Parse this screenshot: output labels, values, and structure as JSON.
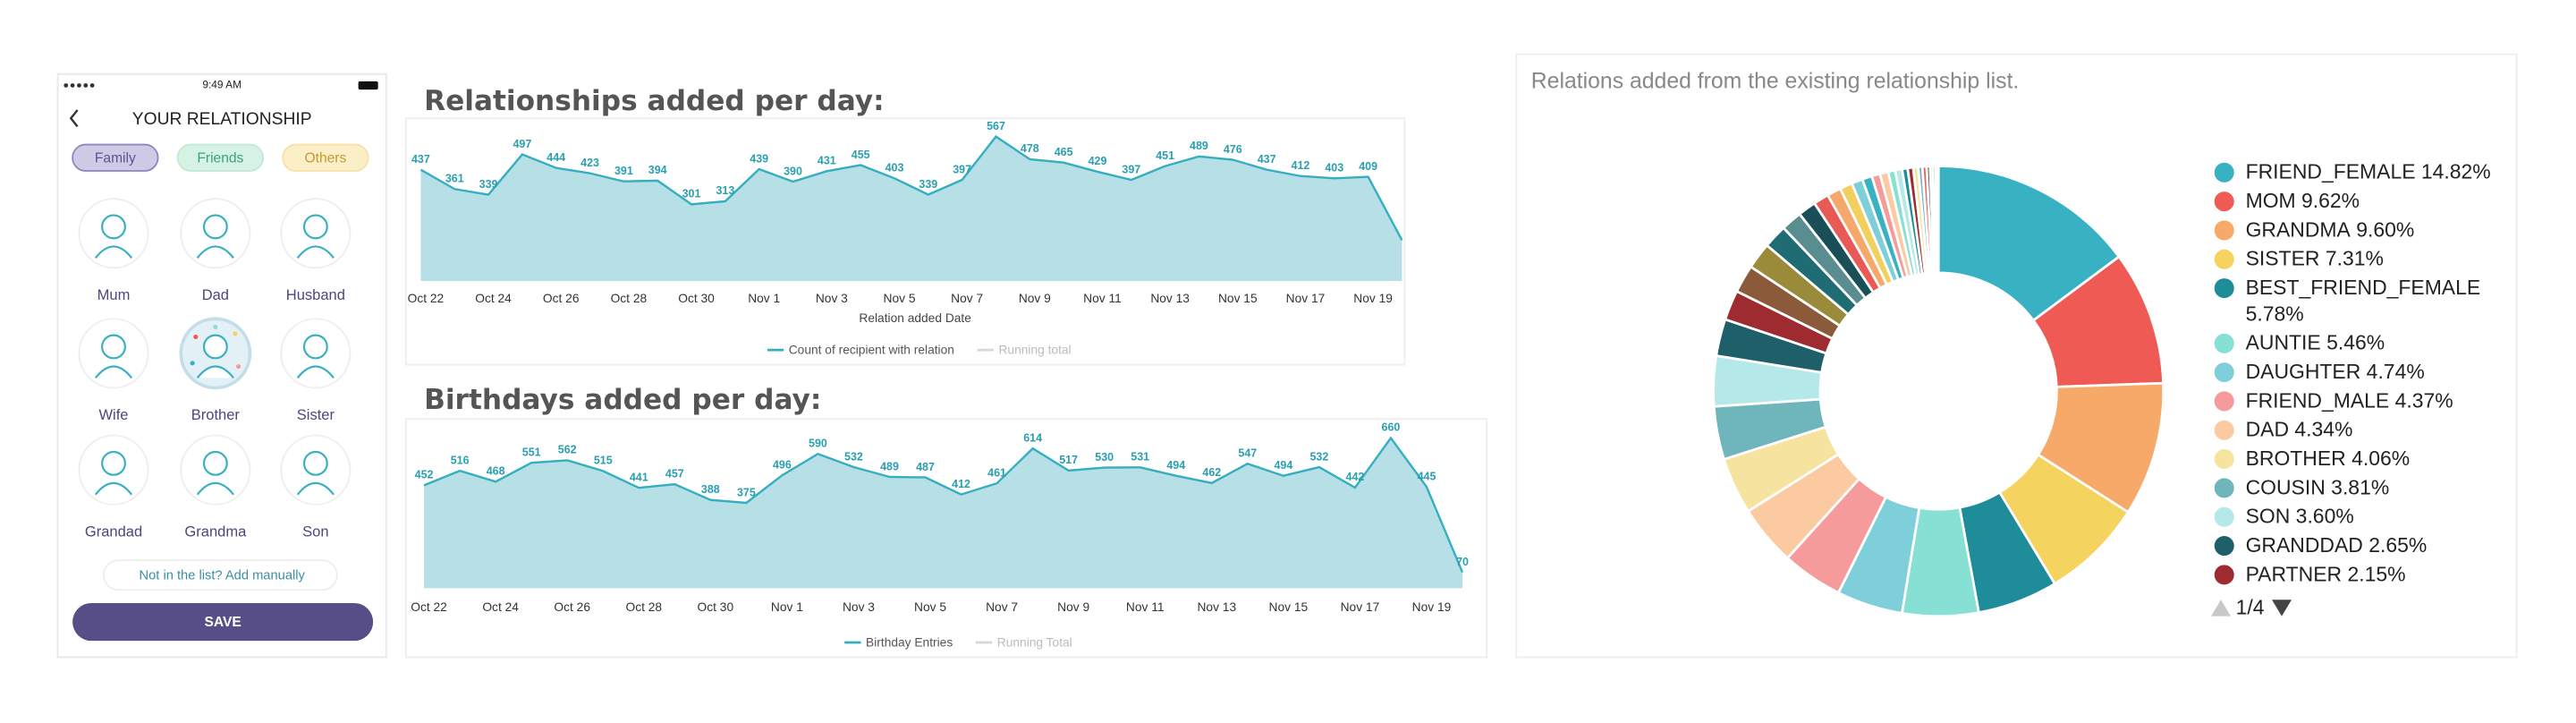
{
  "phone": {
    "status_time": "9:49 AM",
    "title": "YOUR RELATIONSHIP",
    "tabs": [
      "Family",
      "Friends",
      "Others"
    ],
    "tiles": [
      "Mum",
      "Dad",
      "Husband",
      "Wife",
      "Brother",
      "Sister",
      "Grandad",
      "Grandma",
      "Son"
    ],
    "add_manually": "Not in the list? Add manually",
    "button": "SAVE"
  },
  "chart_data": [
    {
      "type": "area",
      "title": "Relationships added per day:",
      "x_label": "Relation added Date",
      "categories": [
        "Oct 22",
        null,
        "Oct 24",
        null,
        "Oct 26",
        null,
        "Oct 28",
        null,
        "Oct 30",
        null,
        "Nov 1",
        null,
        "Nov 3",
        null,
        "Nov 5",
        null,
        "Nov 7",
        null,
        "Nov 9",
        null,
        "Nov 11",
        null,
        "Nov 13",
        null,
        "Nov 15",
        null,
        "Nov 17",
        null,
        "Nov 19",
        null
      ],
      "ylim": [
        0,
        600
      ],
      "series": [
        {
          "name": "Count of recipient with relation",
          "color": "#35aec0",
          "values": [
            437,
            361,
            339,
            497,
            444,
            423,
            391,
            394,
            301,
            313,
            439,
            390,
            431,
            455,
            403,
            339,
            397,
            567,
            478,
            465,
            429,
            397,
            451,
            489,
            476,
            437,
            412,
            403,
            409,
            160
          ],
          "value_labels": [
            "437",
            "361",
            "339",
            "497",
            "444",
            "423",
            "391",
            "394",
            "301",
            "313",
            "439",
            "390",
            "431",
            "455",
            "403",
            "339",
            "397",
            "567",
            "478",
            "465",
            "429",
            "397",
            "451",
            "489",
            "476",
            "437",
            "412",
            "403",
            "409",
            null
          ]
        },
        {
          "name": "Running total",
          "color": "#d6d6d6"
        }
      ]
    },
    {
      "type": "area",
      "title": "Birthdays added per day:",
      "categories": [
        "Oct 22",
        null,
        "Oct 24",
        null,
        "Oct 26",
        null,
        "Oct 28",
        null,
        "Oct 30",
        null,
        "Nov 1",
        null,
        "Nov 3",
        null,
        "Nov 5",
        null,
        "Nov 7",
        null,
        "Nov 9",
        null,
        "Nov 11",
        null,
        "Nov 13",
        null,
        "Nov 15",
        null,
        "Nov 17",
        null,
        "Nov 19",
        null
      ],
      "ylim": [
        0,
        700
      ],
      "series": [
        {
          "name": "Birthday Entries",
          "color": "#35aec0",
          "values": [
            452,
            516,
            468,
            551,
            562,
            515,
            441,
            457,
            388,
            375,
            496,
            590,
            532,
            489,
            487,
            412,
            461,
            614,
            517,
            530,
            531,
            494,
            462,
            547,
            494,
            532,
            442,
            660,
            445,
            70
          ],
          "value_labels": [
            "452",
            "516",
            "468",
            "551",
            "562",
            "515",
            "441",
            "457",
            "388",
            "375",
            "496",
            "590",
            "532",
            "489",
            "487",
            "412",
            "461",
            "614",
            "517",
            "530",
            "531",
            "494",
            "462",
            "547",
            "494",
            "532",
            "442",
            "660",
            "445",
            "70"
          ]
        },
        {
          "name": "Running Total",
          "color": "#d6d6d6"
        }
      ]
    },
    {
      "type": "pie",
      "title": "Relations added from the existing relationship list.",
      "legend_page": "1/4",
      "categories": [
        "FRIEND_FEMALE",
        "MOM",
        "GRANDMA",
        "SISTER",
        "BEST_FRIEND_FEMALE",
        "AUNTIE",
        "DAUGHTER",
        "FRIEND_MALE",
        "DAD",
        "BROTHER",
        "COUSIN",
        "SON",
        "GRANDDAD",
        "PARTNER",
        null,
        null,
        null,
        null,
        null,
        null,
        null,
        null,
        null,
        null,
        null,
        null,
        null,
        null,
        null,
        null,
        null,
        null,
        null,
        null,
        null,
        null,
        null,
        null
      ],
      "values": [
        14.82,
        9.62,
        9.6,
        7.31,
        5.78,
        5.46,
        4.74,
        4.37,
        4.34,
        4.06,
        3.81,
        3.6,
        2.65,
        2.15,
        2.0,
        1.9,
        1.7,
        1.5,
        1.3,
        1.1,
        1.0,
        0.9,
        0.8,
        0.7,
        0.6,
        0.6,
        0.5,
        0.5,
        0.4,
        0.4,
        0.35,
        0.3,
        0.3,
        0.25,
        0.2,
        0.2,
        0.15,
        0.04
      ],
      "value_labels": [
        "14.82%",
        "9.62%",
        "9.60%",
        "7.31%",
        "5.78%",
        "5.46%",
        "4.74%",
        "4.37%",
        "4.34%",
        "4.06%",
        "3.81%",
        "3.60%",
        "2.65%",
        "2.15%",
        null,
        null,
        null,
        null,
        null,
        null,
        null,
        null,
        null,
        null,
        null,
        null,
        null,
        null,
        null,
        null,
        null,
        null,
        null,
        null,
        null,
        null,
        null,
        null
      ],
      "colors": [
        "#38b2c2",
        "#ef5a55",
        "#f7a96a",
        "#f4d35e",
        "#1f8c99",
        "#86e0d4",
        "#7fcfda",
        "#f59b9b",
        "#fbcaa0",
        "#f7e3a0",
        "#6fb5bc",
        "#b5e8e8",
        "#1e5f6a",
        "#9e2b2f",
        "#8a5a3a",
        "#9a8b3a",
        "#1f6c74",
        "#5a8d8f",
        "#1a4f58",
        "#e85a55",
        "#f5a86a",
        "#f2d05e",
        "#7fcfda",
        "#38b2c2",
        "#f59b9b",
        "#fbcaa0",
        "#86e0d4",
        "#b5e8e8",
        "#1f8c99",
        "#9e2b2f",
        "#f7e3a0",
        "#6fb5bc",
        "#ef5a55",
        "#555555",
        "#f4d35e",
        "#38b2c2",
        "#999999",
        "#333333"
      ]
    }
  ]
}
